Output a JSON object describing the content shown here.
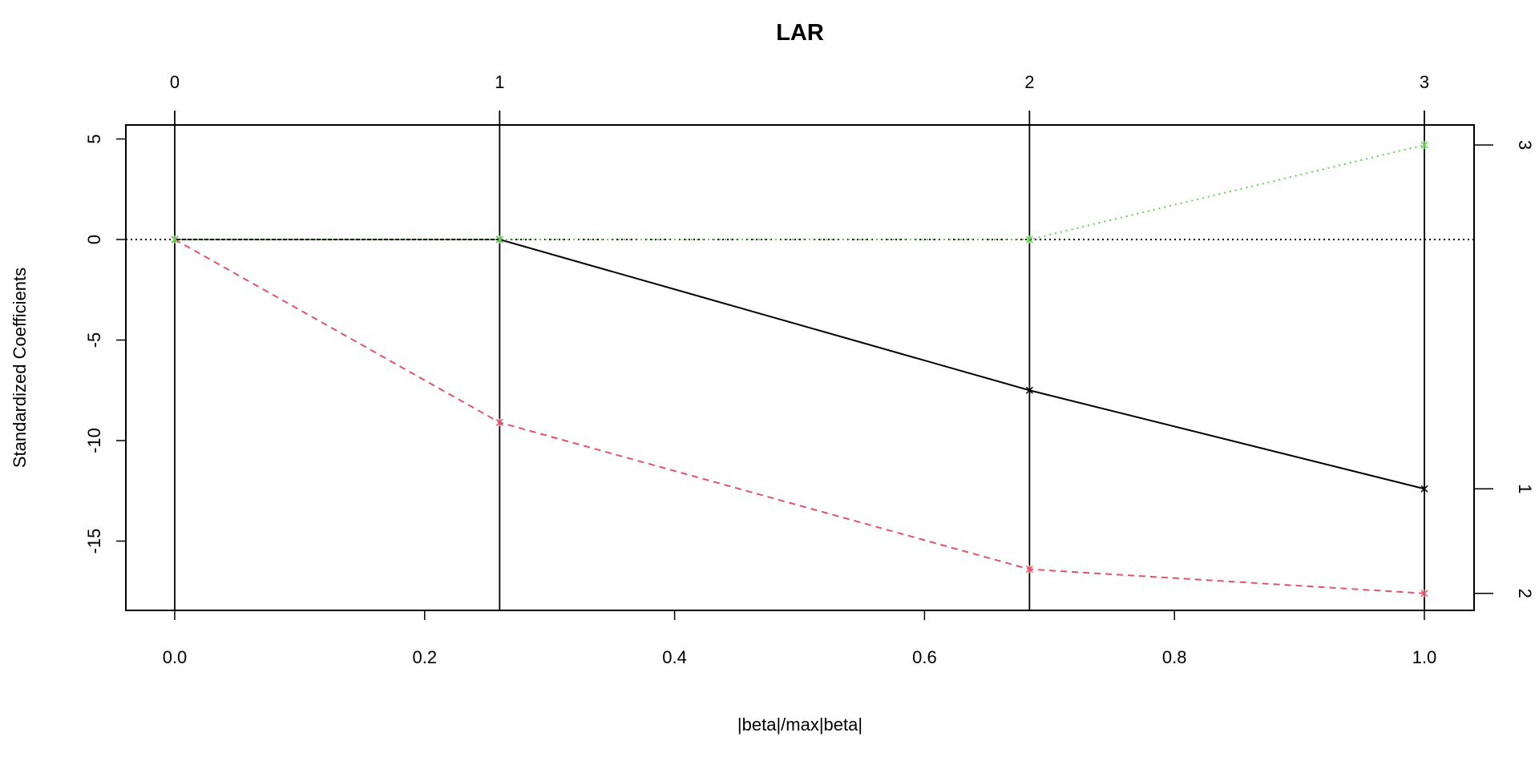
{
  "chart_data": {
    "type": "line",
    "title": "LAR",
    "xlabel": "|beta|/max|beta|",
    "ylabel": "Standardized Coefficients",
    "xlim": [
      0,
      1
    ],
    "ylim": [
      -18.4,
      5.7
    ],
    "x_ticks": [
      "0.0",
      "0.2",
      "0.4",
      "0.6",
      "0.8",
      "1.0"
    ],
    "x_tick_values": [
      0,
      0.2,
      0.4,
      0.6,
      0.8,
      1.0
    ],
    "y_ticks": [
      "5",
      "0",
      "-5",
      "-10",
      "-15"
    ],
    "y_tick_values": [
      5,
      0,
      -5,
      -10,
      -15
    ],
    "top_axis": {
      "labels": [
        "0",
        "1",
        "2",
        "3"
      ],
      "values": [
        0,
        0.26,
        0.684,
        1.0
      ]
    },
    "x": [
      0,
      0.26,
      0.684,
      1.0
    ],
    "series": [
      {
        "name": "1",
        "color": "#000000",
        "dash": "solid",
        "values": [
          0,
          0,
          -7.5,
          -12.4
        ]
      },
      {
        "name": "2",
        "color": "#DF536B",
        "dash": "dashed",
        "values": [
          0,
          -9.1,
          -16.4,
          -17.6
        ]
      },
      {
        "name": "3",
        "color": "#61D04F",
        "dash": "dotted",
        "values": [
          0,
          0,
          0,
          4.7
        ]
      }
    ],
    "right_axis": {
      "labels": [
        "3",
        "1",
        "2"
      ],
      "values": [
        4.7,
        -12.4,
        -17.6
      ]
    },
    "grid": false,
    "legend": "none"
  }
}
